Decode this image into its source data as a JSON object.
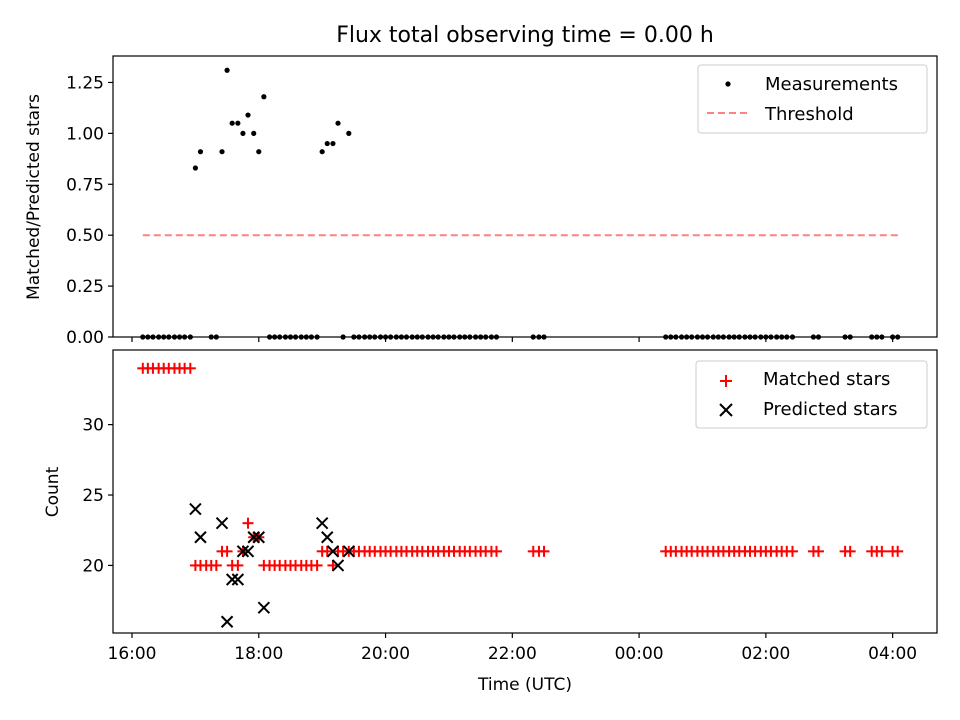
{
  "title": "Flux total observing time = 0.00 h",
  "xlabel": "Time (UTC)",
  "x_unit": "hours since 00:00 UTC on the first day",
  "colors": {
    "measurements": "#000000",
    "threshold": "#ff8080",
    "matched": "#ff0000",
    "predicted": "#000000"
  },
  "chart_data": [
    {
      "type": "scatter",
      "name": "ratio-panel",
      "ylabel": "Matched/Predicted stars",
      "xlim": [
        15.7,
        28.7
      ],
      "ylim": [
        0,
        1.38
      ],
      "yticks": [
        0.0,
        0.25,
        0.5,
        0.75,
        1.0,
        1.25
      ],
      "ytick_labels": [
        "0.00",
        "0.25",
        "0.50",
        "0.75",
        "1.00",
        "1.25"
      ],
      "legend": [
        "Measurements",
        "Threshold"
      ],
      "legend_position": "top-right",
      "threshold": {
        "name": "Threshold",
        "value": 0.5,
        "x_range": [
          16.17,
          28.13
        ]
      },
      "series": [
        {
          "name": "Measurements",
          "marker": "dot",
          "points": [
            [
              16.17,
              0
            ],
            [
              16.25,
              0
            ],
            [
              16.33,
              0
            ],
            [
              16.42,
              0
            ],
            [
              16.5,
              0
            ],
            [
              16.58,
              0
            ],
            [
              16.67,
              0
            ],
            [
              16.75,
              0
            ],
            [
              16.83,
              0
            ],
            [
              16.92,
              0
            ],
            [
              17.0,
              0.83
            ],
            [
              17.08,
              0.91
            ],
            [
              17.25,
              0
            ],
            [
              17.33,
              0
            ],
            [
              17.42,
              0.91
            ],
            [
              17.5,
              1.31
            ],
            [
              17.58,
              1.05
            ],
            [
              17.67,
              1.05
            ],
            [
              17.75,
              1.0
            ],
            [
              17.83,
              1.09
            ],
            [
              17.92,
              1.0
            ],
            [
              18.0,
              0.91
            ],
            [
              18.08,
              1.18
            ],
            [
              18.17,
              0
            ],
            [
              18.25,
              0
            ],
            [
              18.33,
              0
            ],
            [
              18.42,
              0
            ],
            [
              18.5,
              0
            ],
            [
              18.58,
              0
            ],
            [
              18.67,
              0
            ],
            [
              18.75,
              0
            ],
            [
              18.83,
              0
            ],
            [
              18.92,
              0
            ],
            [
              19.0,
              0.91
            ],
            [
              19.08,
              0.95
            ],
            [
              19.17,
              0.95
            ],
            [
              19.25,
              1.05
            ],
            [
              19.33,
              0
            ],
            [
              19.42,
              1.0
            ],
            [
              19.5,
              0
            ],
            [
              19.58,
              0
            ],
            [
              19.67,
              0
            ],
            [
              19.75,
              0
            ],
            [
              19.83,
              0
            ],
            [
              19.92,
              0
            ],
            [
              20.0,
              0
            ],
            [
              20.08,
              0
            ],
            [
              20.17,
              0
            ],
            [
              20.25,
              0
            ],
            [
              20.33,
              0
            ],
            [
              20.42,
              0
            ],
            [
              20.5,
              0
            ],
            [
              20.58,
              0
            ],
            [
              20.67,
              0
            ],
            [
              20.75,
              0
            ],
            [
              20.83,
              0
            ],
            [
              20.92,
              0
            ],
            [
              21.0,
              0
            ],
            [
              21.08,
              0
            ],
            [
              21.17,
              0
            ],
            [
              21.25,
              0
            ],
            [
              21.33,
              0
            ],
            [
              21.42,
              0
            ],
            [
              21.5,
              0
            ],
            [
              21.58,
              0
            ],
            [
              21.67,
              0
            ],
            [
              21.75,
              0
            ],
            [
              22.33,
              0
            ],
            [
              22.42,
              0
            ],
            [
              22.5,
              0
            ],
            [
              24.42,
              0
            ],
            [
              24.5,
              0
            ],
            [
              24.58,
              0
            ],
            [
              24.67,
              0
            ],
            [
              24.75,
              0
            ],
            [
              24.83,
              0
            ],
            [
              24.92,
              0
            ],
            [
              25.0,
              0
            ],
            [
              25.08,
              0
            ],
            [
              25.17,
              0
            ],
            [
              25.25,
              0
            ],
            [
              25.33,
              0
            ],
            [
              25.42,
              0
            ],
            [
              25.5,
              0
            ],
            [
              25.58,
              0
            ],
            [
              25.67,
              0
            ],
            [
              25.75,
              0
            ],
            [
              25.83,
              0
            ],
            [
              25.92,
              0
            ],
            [
              26.0,
              0
            ],
            [
              26.08,
              0
            ],
            [
              26.17,
              0
            ],
            [
              26.25,
              0
            ],
            [
              26.33,
              0
            ],
            [
              26.42,
              0
            ],
            [
              26.75,
              0
            ],
            [
              26.83,
              0
            ],
            [
              27.25,
              0
            ],
            [
              27.33,
              0
            ],
            [
              27.67,
              0
            ],
            [
              27.75,
              0
            ],
            [
              27.83,
              0
            ],
            [
              28.0,
              0
            ],
            [
              28.08,
              0
            ]
          ]
        }
      ]
    },
    {
      "type": "scatter",
      "name": "count-panel",
      "ylabel": "Count",
      "xlim": [
        15.7,
        28.7
      ],
      "ylim": [
        15.2,
        35.3
      ],
      "yticks": [
        20,
        25,
        30
      ],
      "ytick_labels": [
        "20",
        "25",
        "30"
      ],
      "xticks": [
        16,
        18,
        20,
        22,
        24,
        26,
        28
      ],
      "xtick_labels": [
        "16:00",
        "18:00",
        "20:00",
        "22:00",
        "00:00",
        "02:00",
        "04:00"
      ],
      "legend": [
        "Matched stars",
        "Predicted stars"
      ],
      "legend_position": "top-right",
      "series": [
        {
          "name": "Matched stars",
          "marker": "plus",
          "points": [
            [
              16.17,
              34
            ],
            [
              16.25,
              34
            ],
            [
              16.33,
              34
            ],
            [
              16.42,
              34
            ],
            [
              16.5,
              34
            ],
            [
              16.58,
              34
            ],
            [
              16.67,
              34
            ],
            [
              16.75,
              34
            ],
            [
              16.83,
              34
            ],
            [
              16.92,
              34
            ],
            [
              17.0,
              20
            ],
            [
              17.08,
              20
            ],
            [
              17.17,
              20
            ],
            [
              17.25,
              20
            ],
            [
              17.33,
              20
            ],
            [
              17.42,
              21
            ],
            [
              17.5,
              21
            ],
            [
              17.58,
              20
            ],
            [
              17.67,
              20
            ],
            [
              17.75,
              21
            ],
            [
              17.83,
              23
            ],
            [
              17.92,
              22
            ],
            [
              18.0,
              22
            ],
            [
              18.08,
              20
            ],
            [
              18.17,
              20
            ],
            [
              18.25,
              20
            ],
            [
              18.33,
              20
            ],
            [
              18.42,
              20
            ],
            [
              18.5,
              20
            ],
            [
              18.58,
              20
            ],
            [
              18.67,
              20
            ],
            [
              18.75,
              20
            ],
            [
              18.83,
              20
            ],
            [
              18.92,
              20
            ],
            [
              19.0,
              21
            ],
            [
              19.08,
              21
            ],
            [
              19.17,
              20
            ],
            [
              19.25,
              21
            ],
            [
              19.33,
              21
            ],
            [
              19.42,
              21
            ],
            [
              19.5,
              21
            ],
            [
              19.58,
              21
            ],
            [
              19.67,
              21
            ],
            [
              19.75,
              21
            ],
            [
              19.83,
              21
            ],
            [
              19.92,
              21
            ],
            [
              20.0,
              21
            ],
            [
              20.08,
              21
            ],
            [
              20.17,
              21
            ],
            [
              20.25,
              21
            ],
            [
              20.33,
              21
            ],
            [
              20.42,
              21
            ],
            [
              20.5,
              21
            ],
            [
              20.58,
              21
            ],
            [
              20.67,
              21
            ],
            [
              20.75,
              21
            ],
            [
              20.83,
              21
            ],
            [
              20.92,
              21
            ],
            [
              21.0,
              21
            ],
            [
              21.08,
              21
            ],
            [
              21.17,
              21
            ],
            [
              21.25,
              21
            ],
            [
              21.33,
              21
            ],
            [
              21.42,
              21
            ],
            [
              21.5,
              21
            ],
            [
              21.58,
              21
            ],
            [
              21.67,
              21
            ],
            [
              21.75,
              21
            ],
            [
              22.33,
              21
            ],
            [
              22.42,
              21
            ],
            [
              22.5,
              21
            ],
            [
              24.42,
              21
            ],
            [
              24.5,
              21
            ],
            [
              24.58,
              21
            ],
            [
              24.67,
              21
            ],
            [
              24.75,
              21
            ],
            [
              24.83,
              21
            ],
            [
              24.92,
              21
            ],
            [
              25.0,
              21
            ],
            [
              25.08,
              21
            ],
            [
              25.17,
              21
            ],
            [
              25.25,
              21
            ],
            [
              25.33,
              21
            ],
            [
              25.42,
              21
            ],
            [
              25.5,
              21
            ],
            [
              25.58,
              21
            ],
            [
              25.67,
              21
            ],
            [
              25.75,
              21
            ],
            [
              25.83,
              21
            ],
            [
              25.92,
              21
            ],
            [
              26.0,
              21
            ],
            [
              26.08,
              21
            ],
            [
              26.17,
              21
            ],
            [
              26.25,
              21
            ],
            [
              26.33,
              21
            ],
            [
              26.42,
              21
            ],
            [
              26.75,
              21
            ],
            [
              26.83,
              21
            ],
            [
              27.25,
              21
            ],
            [
              27.33,
              21
            ],
            [
              27.67,
              21
            ],
            [
              27.75,
              21
            ],
            [
              27.83,
              21
            ],
            [
              28.0,
              21
            ],
            [
              28.08,
              21
            ]
          ]
        },
        {
          "name": "Predicted stars",
          "marker": "x",
          "points": [
            [
              17.0,
              24
            ],
            [
              17.08,
              22
            ],
            [
              17.42,
              23
            ],
            [
              17.5,
              16
            ],
            [
              17.58,
              19
            ],
            [
              17.67,
              19
            ],
            [
              17.75,
              21
            ],
            [
              17.83,
              21
            ],
            [
              17.92,
              22
            ],
            [
              18.0,
              22
            ],
            [
              18.08,
              17
            ],
            [
              19.0,
              23
            ],
            [
              19.08,
              22
            ],
            [
              19.17,
              21
            ],
            [
              19.25,
              20
            ],
            [
              19.42,
              21
            ]
          ]
        }
      ]
    }
  ]
}
